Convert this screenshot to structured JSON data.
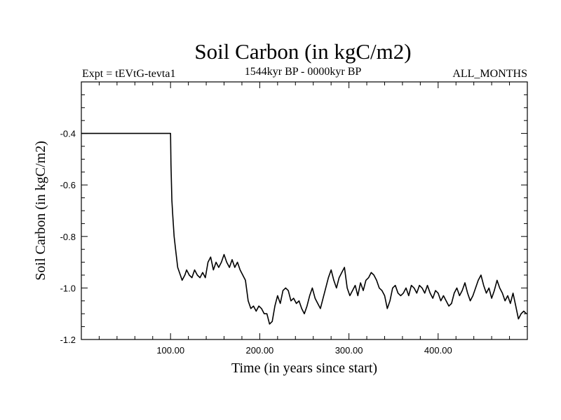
{
  "chart_data": {
    "type": "line",
    "title": "Soil Carbon (in kgC/m2)",
    "subtitle_left": "Expt = tEVtG-tevta1",
    "subtitle_center": "1544kyr BP - 0000kyr BP",
    "subtitle_right": "ALL_MONTHS",
    "xlabel": "Time (in years since start)",
    "ylabel": "Soil Carbon (in kgC/m2)",
    "xlim": [
      0,
      500
    ],
    "ylim": [
      -1.2,
      -0.2
    ],
    "xticks": [
      100,
      200,
      300,
      400
    ],
    "xtick_labels": [
      "100.00",
      "200.00",
      "300.00",
      "400.00"
    ],
    "yticks": [
      -1.2,
      -1.0,
      -0.8,
      -0.6,
      -0.4
    ],
    "ytick_labels": [
      "-1.2",
      "-1.0",
      "-0.8",
      "-0.6",
      "-0.4"
    ],
    "series": [
      {
        "name": "Soil Carbon",
        "color": "#000000",
        "x": [
          0,
          100,
          100.5,
          101.5,
          102.5,
          104,
          106,
          108,
          111,
          113,
          116,
          118,
          121,
          124,
          127,
          130,
          133,
          136,
          139,
          142,
          145,
          148,
          151,
          154,
          157,
          160,
          163,
          166,
          169,
          172,
          175,
          178,
          181,
          184,
          187,
          190,
          193,
          196,
          199,
          202,
          205,
          208,
          211,
          214,
          217,
          220,
          223,
          226,
          229,
          232,
          235,
          238,
          241,
          244,
          247,
          250,
          253,
          256,
          259,
          262,
          265,
          268,
          271,
          274,
          277,
          280,
          283,
          286,
          289,
          292,
          295,
          298,
          301,
          304,
          307,
          310,
          313,
          316,
          319,
          322,
          325,
          328,
          331,
          334,
          337,
          340,
          343,
          346,
          349,
          352,
          355,
          358,
          361,
          364,
          367,
          370,
          373,
          376,
          379,
          382,
          385,
          388,
          391,
          394,
          397,
          400,
          403,
          406,
          409,
          412,
          415,
          418,
          421,
          424,
          427,
          430,
          433,
          436,
          439,
          442,
          445,
          448,
          451,
          454,
          457,
          460,
          463,
          466,
          469,
          472,
          475,
          478,
          481,
          484,
          487,
          490,
          493,
          496,
          499
        ],
        "y": [
          -0.4,
          -0.4,
          -0.52,
          -0.66,
          -0.72,
          -0.8,
          -0.86,
          -0.92,
          -0.95,
          -0.97,
          -0.95,
          -0.93,
          -0.95,
          -0.96,
          -0.93,
          -0.95,
          -0.96,
          -0.94,
          -0.96,
          -0.9,
          -0.88,
          -0.93,
          -0.9,
          -0.92,
          -0.9,
          -0.87,
          -0.9,
          -0.92,
          -0.89,
          -0.92,
          -0.9,
          -0.93,
          -0.95,
          -0.97,
          -1.05,
          -1.08,
          -1.07,
          -1.09,
          -1.07,
          -1.08,
          -1.1,
          -1.1,
          -1.14,
          -1.13,
          -1.07,
          -1.03,
          -1.06,
          -1.01,
          -1.0,
          -1.01,
          -1.05,
          -1.04,
          -1.06,
          -1.05,
          -1.08,
          -1.1,
          -1.07,
          -1.03,
          -1.0,
          -1.04,
          -1.06,
          -1.08,
          -1.04,
          -1.0,
          -0.96,
          -0.93,
          -0.97,
          -1.0,
          -0.96,
          -0.94,
          -0.92,
          -1.0,
          -1.03,
          -1.01,
          -0.99,
          -1.03,
          -0.98,
          -1.01,
          -0.97,
          -0.96,
          -0.94,
          -0.95,
          -0.97,
          -1.0,
          -1.01,
          -1.03,
          -1.08,
          -1.05,
          -1.0,
          -0.99,
          -1.02,
          -1.03,
          -1.02,
          -1.0,
          -1.03,
          -0.99,
          -1.0,
          -1.02,
          -0.99,
          -1.0,
          -1.02,
          -0.99,
          -1.02,
          -1.04,
          -1.01,
          -1.02,
          -1.05,
          -1.03,
          -1.05,
          -1.07,
          -1.06,
          -1.02,
          -1.0,
          -1.03,
          -1.01,
          -0.98,
          -1.02,
          -1.05,
          -1.03,
          -1.0,
          -0.97,
          -0.95,
          -0.99,
          -1.02,
          -1.0,
          -1.04,
          -1.01,
          -0.97,
          -1.0,
          -1.02,
          -1.05,
          -1.03,
          -1.06,
          -1.02,
          -1.07,
          -1.12,
          -1.1,
          -1.09,
          -1.1
        ]
      }
    ]
  }
}
